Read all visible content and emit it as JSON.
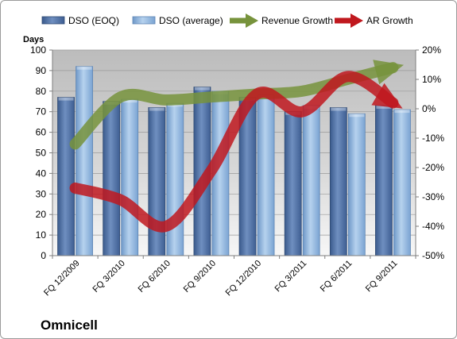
{
  "company": "Omnicell",
  "chart_data": {
    "type": "bar+line",
    "categories": [
      "FQ 12/2009",
      "FQ 3/2010",
      "FQ 6/2010",
      "FQ 9/2010",
      "FQ 12/2010",
      "FQ 3/2011",
      "FQ 6/2011",
      "FQ 9/2011"
    ],
    "bar_series": [
      {
        "name": "DSO (EOQ)",
        "values": [
          77,
          75,
          72,
          82,
          77,
          70,
          72,
          73
        ]
      },
      {
        "name": "DSO (average)",
        "values": [
          92,
          76,
          74,
          80,
          78,
          73,
          69,
          71
        ]
      }
    ],
    "line_series": [
      {
        "name": "Revenue Growth",
        "values": [
          -12,
          4,
          3,
          4,
          5,
          6,
          10,
          14
        ]
      },
      {
        "name": "AR Growth",
        "values": [
          -27,
          -31,
          -40,
          -21,
          5,
          -1,
          11,
          2
        ]
      }
    ],
    "ylabel": "Days",
    "ylim": [
      0,
      100
    ],
    "yticks": [
      0,
      10,
      20,
      30,
      40,
      50,
      60,
      70,
      80,
      90,
      100
    ],
    "y2lim": [
      -50,
      20
    ],
    "y2ticks": [
      "-50%",
      "-40%",
      "-30%",
      "-20%",
      "-10%",
      "0%",
      "10%",
      "20%"
    ],
    "legend_position": "top",
    "grid": true,
    "colors": {
      "bar_eoq": "#4a6a9a",
      "bar_avg": "#8bb0d8",
      "revenue": "#77933c",
      "ar": "#c0181e"
    }
  }
}
